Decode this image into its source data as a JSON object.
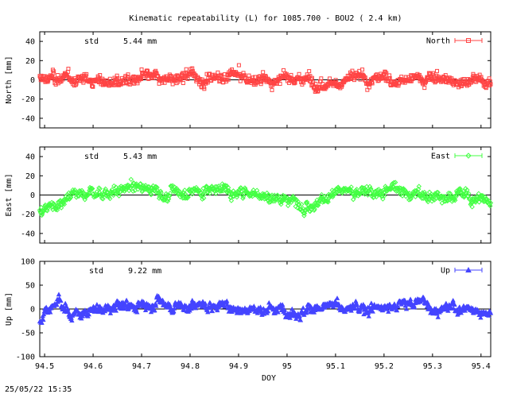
{
  "title": "Kinematic repeatability (L) for 1085.700 - BOU2  (  2.4 km)",
  "footer": "25/05/22 15:35",
  "colors": {
    "north": "#ff4444",
    "east": "#44ff44",
    "up": "#4444ff",
    "zero_line": "#000000"
  },
  "chart_data": [
    {
      "type": "scatter",
      "component": "north",
      "marker": "square",
      "ylabel": "North [mm]",
      "legend": "North",
      "legend_position": "top-right",
      "std_label": "std",
      "std_value": "5.44 mm",
      "ylim": [
        -50,
        50
      ],
      "yticks": [
        -40,
        -20,
        0,
        20,
        40
      ],
      "xlim": [
        94.49,
        95.42
      ],
      "std": 5.44,
      "mean": 0,
      "series_trend": {
        "x": [
          94.49,
          94.52,
          94.55,
          94.6,
          94.65,
          94.7,
          94.75,
          94.8,
          94.87,
          94.9,
          94.95,
          95.0,
          95.05,
          95.1,
          95.15,
          95.2,
          95.25,
          95.3,
          95.35,
          95.42
        ],
        "y": [
          0,
          2,
          -1,
          1,
          -3,
          1,
          -1,
          1,
          4,
          2,
          0,
          -1,
          1,
          -1,
          2,
          1,
          -1,
          3,
          -2,
          0
        ]
      }
    },
    {
      "type": "scatter",
      "component": "east",
      "marker": "diamond",
      "ylabel": "East [mm]",
      "legend": "East",
      "legend_position": "top-right",
      "std_label": "std",
      "std_value": "5.43 mm",
      "ylim": [
        -50,
        50
      ],
      "yticks": [
        -40,
        -20,
        0,
        20,
        40
      ],
      "xlim": [
        94.49,
        95.42
      ],
      "std": 5.43,
      "mean": 0,
      "series_trend": {
        "x": [
          94.49,
          94.51,
          94.55,
          94.6,
          94.65,
          94.68,
          94.75,
          94.8,
          94.87,
          94.9,
          94.95,
          95.0,
          95.05,
          95.1,
          95.15,
          95.2,
          95.25,
          95.3,
          95.35,
          95.42
        ],
        "y": [
          -18,
          -10,
          0,
          2,
          5,
          8,
          3,
          4,
          7,
          4,
          0,
          -4,
          -6,
          2,
          4,
          6,
          3,
          -2,
          0,
          -8
        ]
      }
    },
    {
      "type": "scatter",
      "component": "up",
      "marker": "triangle",
      "ylabel": "Up [mm]",
      "legend": "Up",
      "legend_position": "top-right",
      "std_label": "std",
      "std_value": "9.22 mm",
      "ylim": [
        -100,
        100
      ],
      "yticks": [
        -100,
        -50,
        0,
        50,
        100
      ],
      "xlim": [
        94.49,
        95.42
      ],
      "xlabel": "DOY",
      "xticks": [
        94.5,
        94.6,
        94.7,
        94.8,
        94.9,
        95,
        95.1,
        95.2,
        95.3,
        95.4
      ],
      "std": 9.22,
      "mean": 0,
      "series_trend": {
        "x": [
          94.49,
          94.5,
          94.53,
          94.55,
          94.6,
          94.7,
          94.75,
          94.8,
          94.9,
          95.0,
          95.1,
          95.2,
          95.28,
          95.3,
          95.35,
          95.42
        ],
        "y": [
          -30,
          5,
          20,
          -10,
          0,
          8,
          12,
          8,
          2,
          0,
          2,
          5,
          15,
          5,
          0,
          -5
        ]
      }
    }
  ]
}
